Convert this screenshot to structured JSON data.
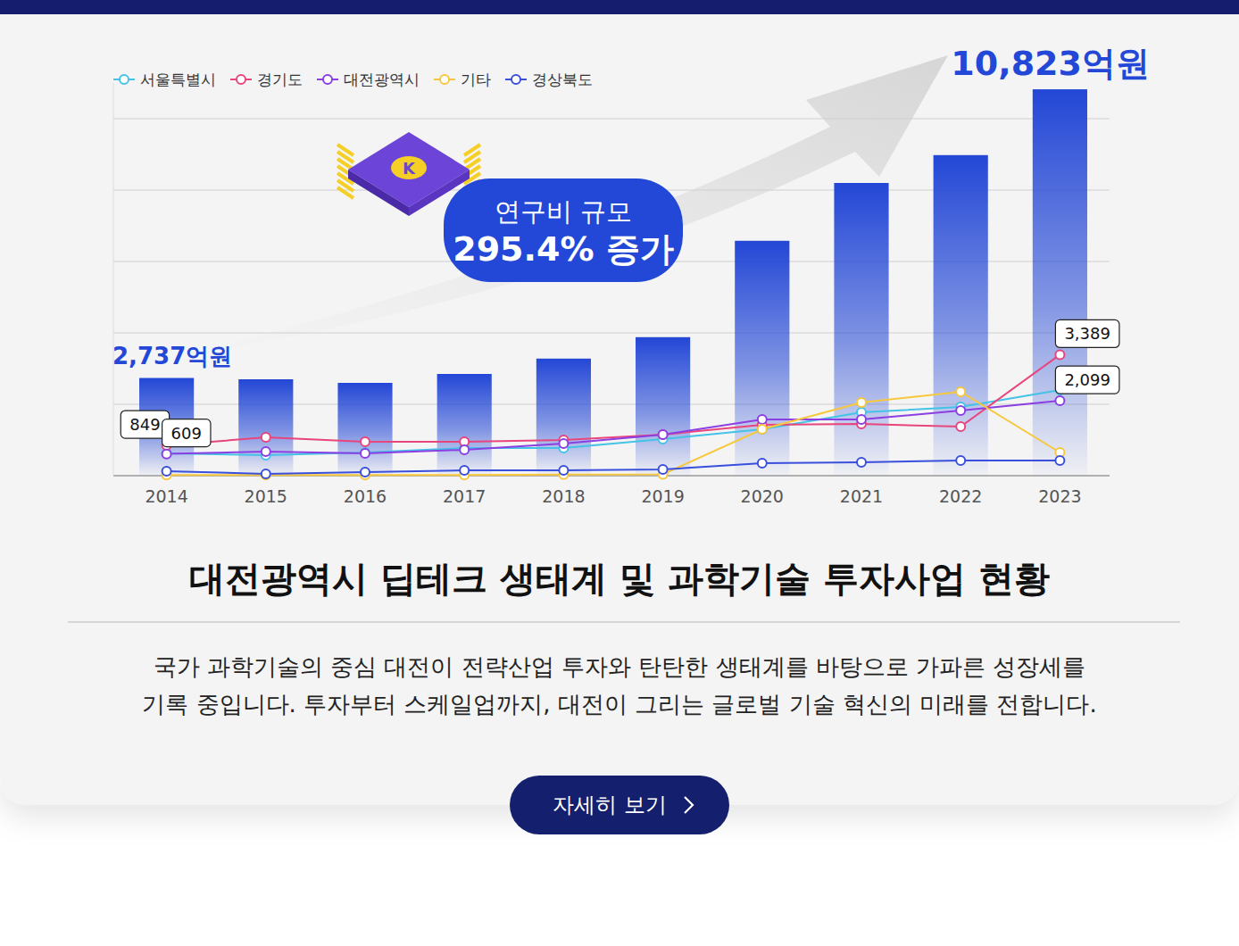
{
  "chart_data": {
    "type": "bar",
    "categories": [
      "2014",
      "2015",
      "2016",
      "2017",
      "2018",
      "2019",
      "2020",
      "2021",
      "2022",
      "2023"
    ],
    "values": [
      2737,
      2700,
      2600,
      2850,
      3280,
      3880,
      6580,
      8200,
      8980,
      10823
    ],
    "value_labels": [
      "2,737억원",
      null,
      null,
      null,
      null,
      null,
      null,
      null,
      null,
      "10,823억원"
    ],
    "color": "#2347d6",
    "series": [
      {
        "name": "서울특별시",
        "type": "line",
        "color": "#45c3e6",
        "marker": "circle",
        "values": [
          625,
          575,
          650,
          775,
          775,
          1025,
          1300,
          1775,
          1925,
          2400
        ]
      },
      {
        "name": "경기도",
        "type": "line",
        "color": "#e8457c",
        "marker": "circle",
        "values": [
          849,
          1075,
          950,
          950,
          1000,
          1150,
          1425,
          1450,
          1375,
          3389
        ],
        "value_labels": [
          "849",
          null,
          null,
          null,
          null,
          null,
          null,
          null,
          null,
          "3,389"
        ]
      },
      {
        "name": "대전광역시",
        "type": "line",
        "color": "#8b3fe3",
        "marker": "circle",
        "values": [
          609,
          675,
          625,
          725,
          900,
          1150,
          1575,
          1575,
          1825,
          2099
        ],
        "value_labels": [
          "609",
          null,
          null,
          null,
          null,
          null,
          null,
          null,
          null,
          "2,099"
        ]
      },
      {
        "name": "기타",
        "type": "line",
        "color": "#f7c83c",
        "marker": "circle",
        "values": [
          20,
          20,
          20,
          20,
          30,
          40,
          1300,
          2050,
          2350,
          650
        ]
      },
      {
        "name": "경상북도",
        "type": "line",
        "color": "#3a4fdc",
        "marker": "circle",
        "values": [
          125,
          50,
          100,
          150,
          150,
          175,
          350,
          375,
          425,
          425
        ]
      }
    ],
    "ylim": [
      0,
      11000
    ],
    "yticks": [
      0,
      2000,
      4000,
      6000,
      8000,
      10000
    ],
    "grid": true,
    "tick_labels": "x",
    "legend": "top-left",
    "annotations": [
      "연구비 규모",
      "295.4% 증가"
    ]
  },
  "page": {
    "icon_label": "K",
    "heading": "대전광역시 딥테크 생태계 및 과학기술 투자사업 현황",
    "description": [
      "국가 과학기술의 중심 대전이 전략산업 투자와 탄탄한 생태계를 바탕으로 가파른 성장세를",
      "기록 중입니다. 투자부터 스케일업까지, 대전이 그리는 글로벌 기술 혁신의 미래를 전합니다."
    ],
    "button": "자세히 보기"
  }
}
